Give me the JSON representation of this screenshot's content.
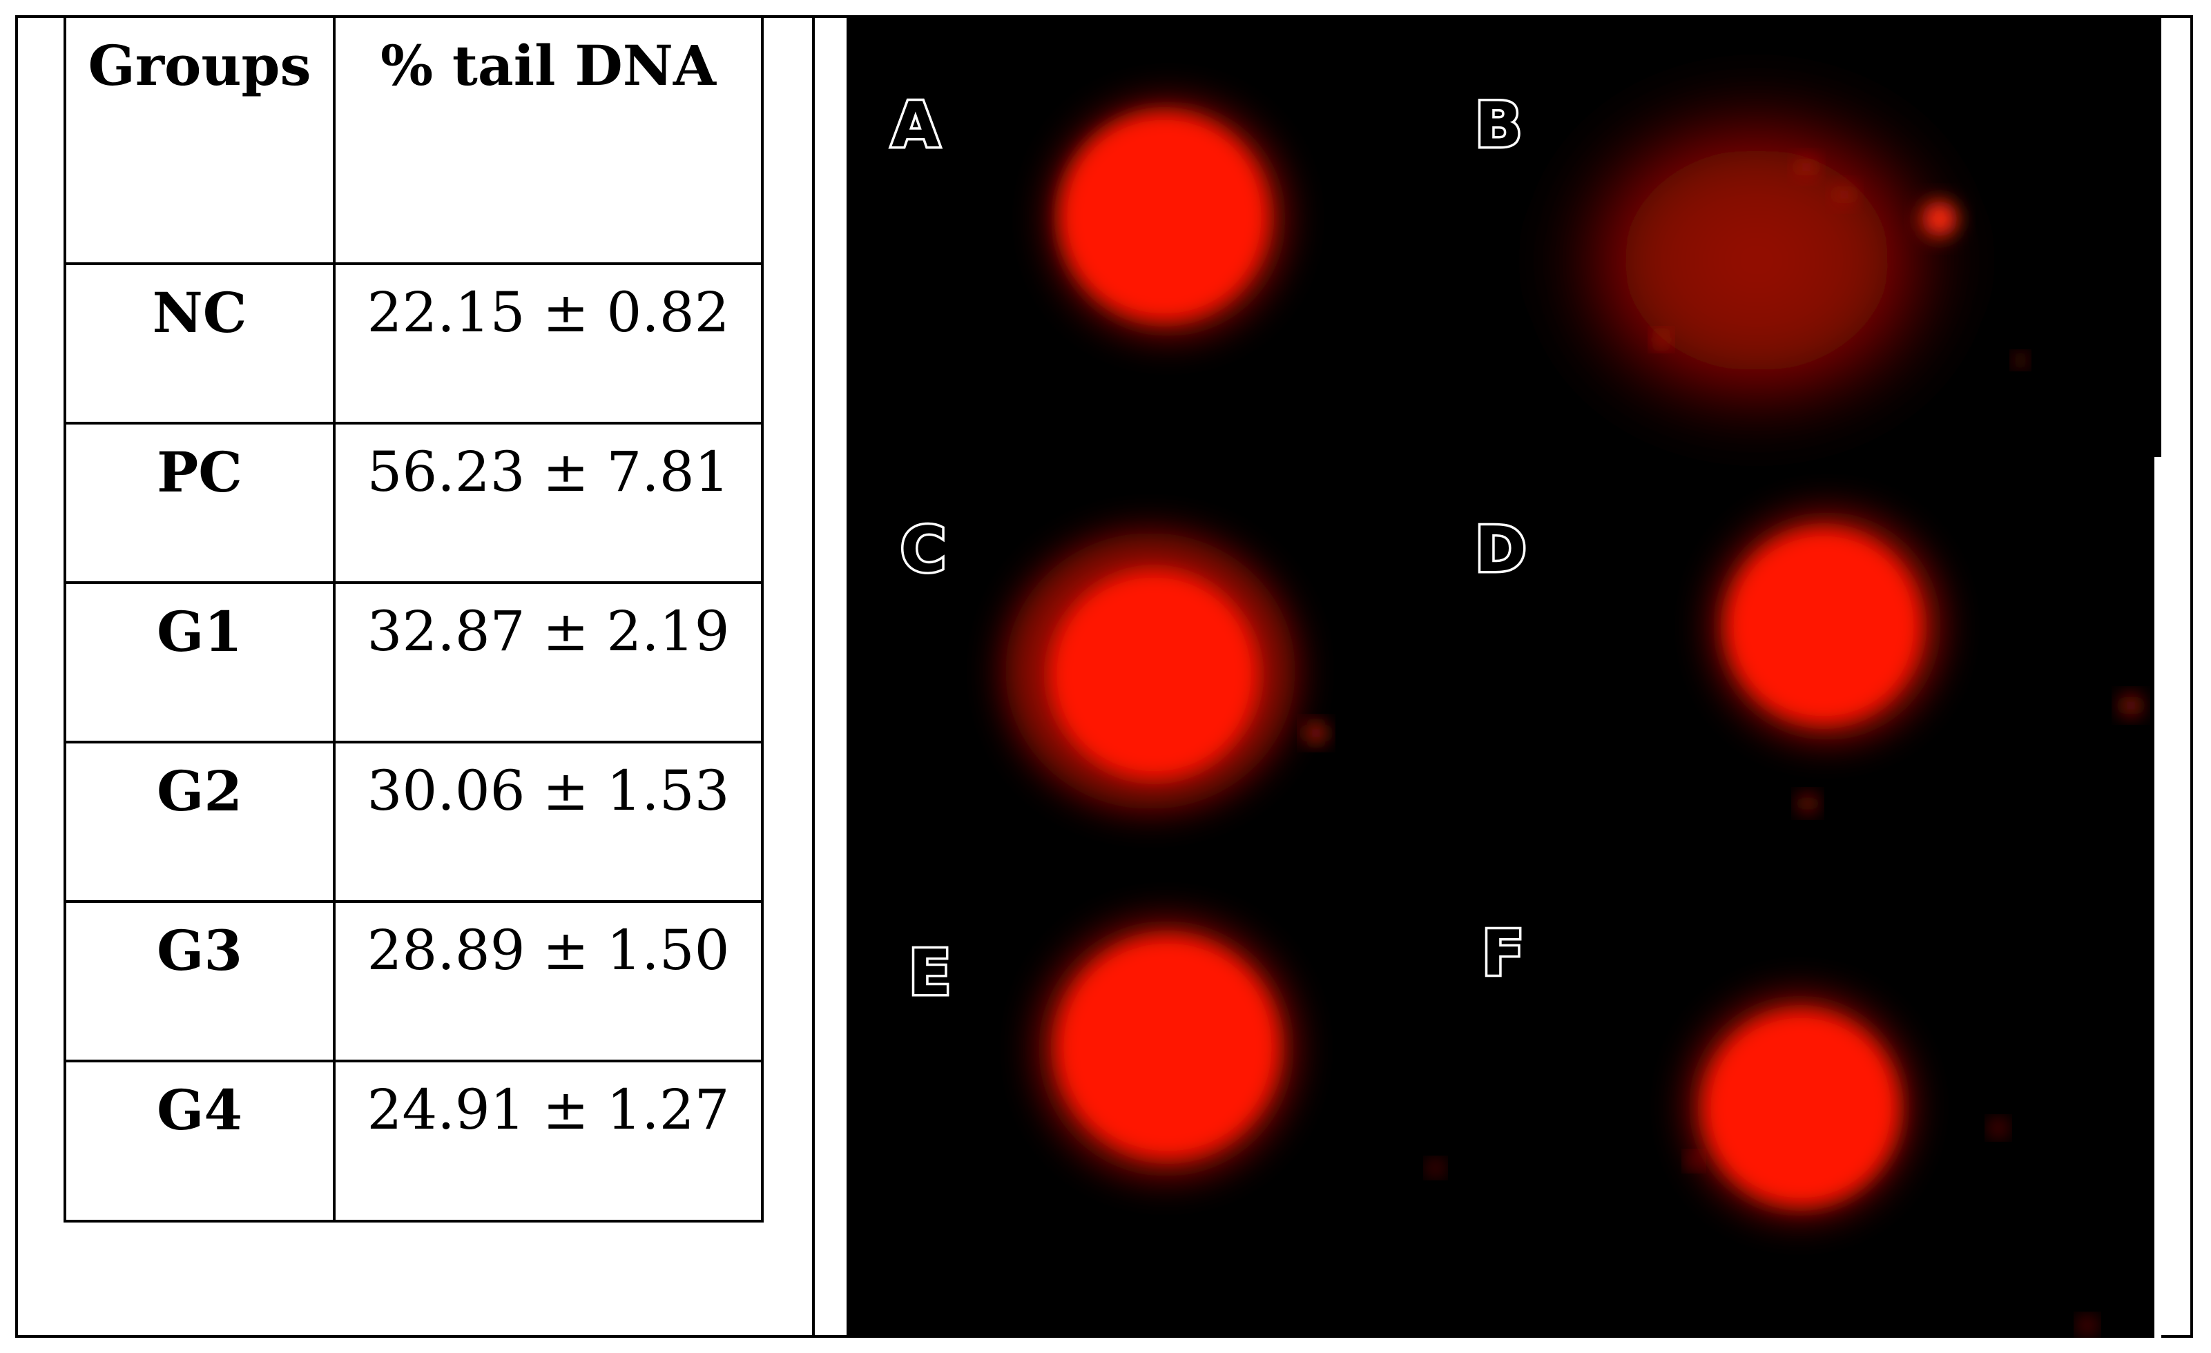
{
  "table": {
    "headers": [
      "Groups",
      "% tail DNA"
    ],
    "rows": [
      {
        "group": "NC",
        "value": "22.15 ± 0.82"
      },
      {
        "group": "PC",
        "value": "56.23 ± 7.81"
      },
      {
        "group": "G1",
        "value": "32.87 ± 2.19"
      },
      {
        "group": "G2",
        "value": "30.06 ± 1.53"
      },
      {
        "group": "G3",
        "value": "28.89 ± 1.50"
      },
      {
        "group": "G4",
        "value": "24.91 ± 1.27"
      }
    ]
  },
  "image_panel": {
    "labels": [
      "A",
      "B",
      "C",
      "D",
      "E",
      "F"
    ],
    "stain_color": "#ff1a00",
    "background_color": "#000000"
  }
}
